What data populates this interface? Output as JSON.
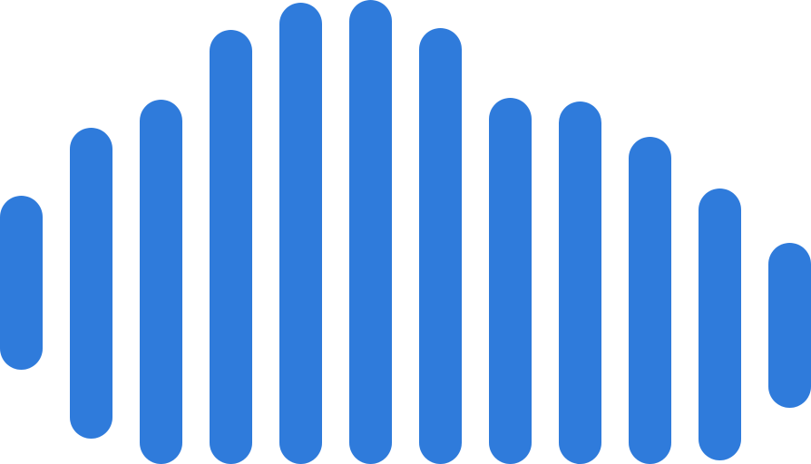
{
  "graphic": {
    "icon": "sound-wave-icon",
    "bar_color": "#2F7BDB",
    "background": "#FFFFFF"
  }
}
